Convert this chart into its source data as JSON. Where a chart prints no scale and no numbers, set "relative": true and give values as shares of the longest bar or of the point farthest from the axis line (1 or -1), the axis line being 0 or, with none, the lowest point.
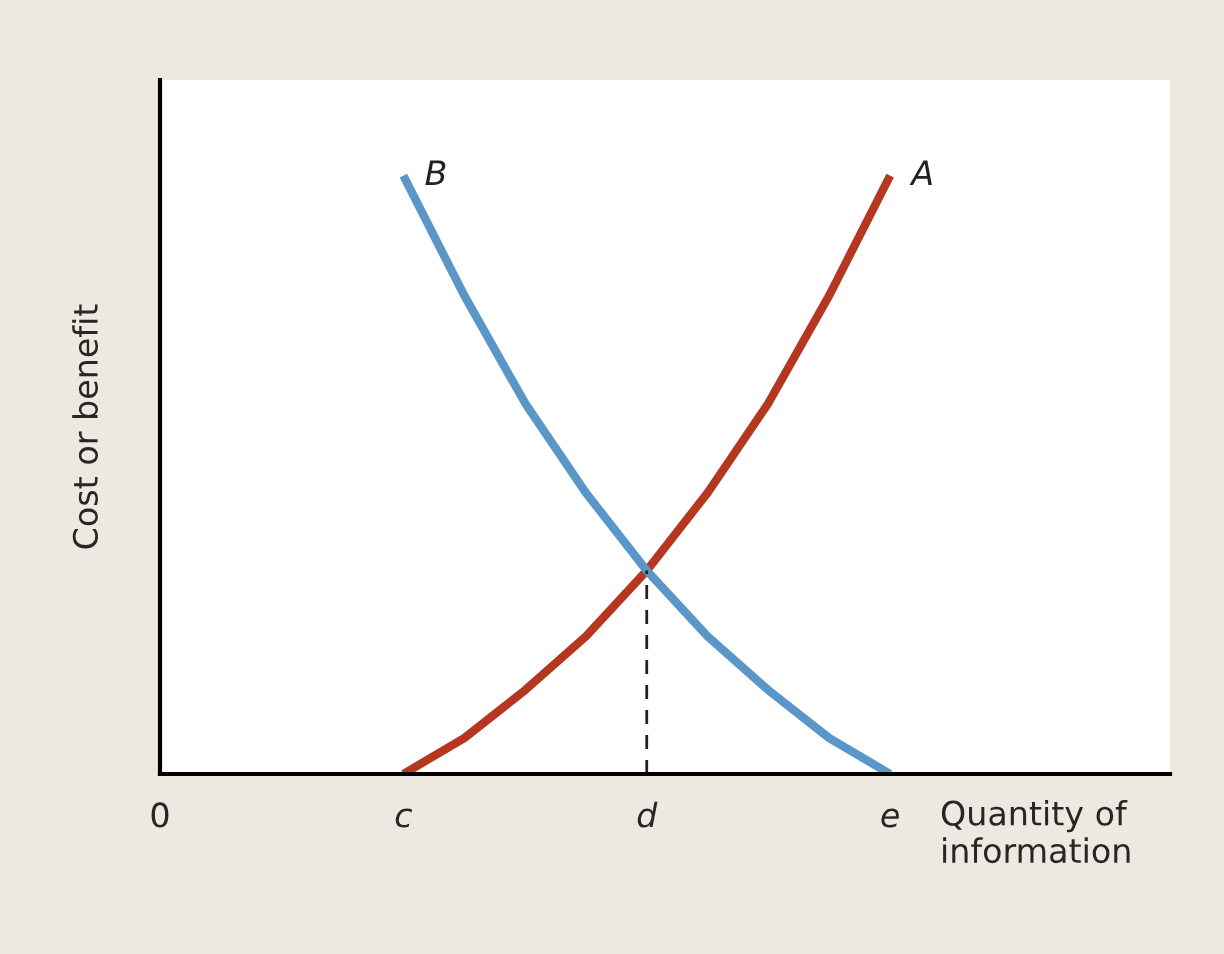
{
  "chart_data": {
    "type": "line",
    "relative": true,
    "xlabel": "Quantity of information",
    "ylabel": "Cost or benefit",
    "categories": [
      "0",
      null,
      null,
      null,
      "c",
      null,
      null,
      null,
      "d",
      null,
      null,
      null,
      "e",
      null,
      null,
      null,
      null
    ],
    "tick_labels": "x",
    "grid": false,
    "legend": false,
    "marker": "none",
    "series": [
      {
        "name": "A",
        "color": "#b5371f",
        "values": [
          null,
          null,
          null,
          null,
          0,
          0.06,
          0.14,
          0.23,
          0.34,
          0.47,
          0.62,
          0.8,
          1.0,
          null,
          null,
          null,
          null
        ]
      },
      {
        "name": "B",
        "color": "#5a96c8",
        "values": [
          null,
          null,
          null,
          null,
          1.0,
          0.8,
          0.62,
          0.47,
          0.34,
          0.23,
          0.14,
          0.06,
          0,
          null,
          null,
          null,
          null
        ]
      }
    ],
    "ref_lines": [
      {
        "axis": "x",
        "value": "d",
        "color": "#222222",
        "line_style": "dashed"
      }
    ]
  }
}
